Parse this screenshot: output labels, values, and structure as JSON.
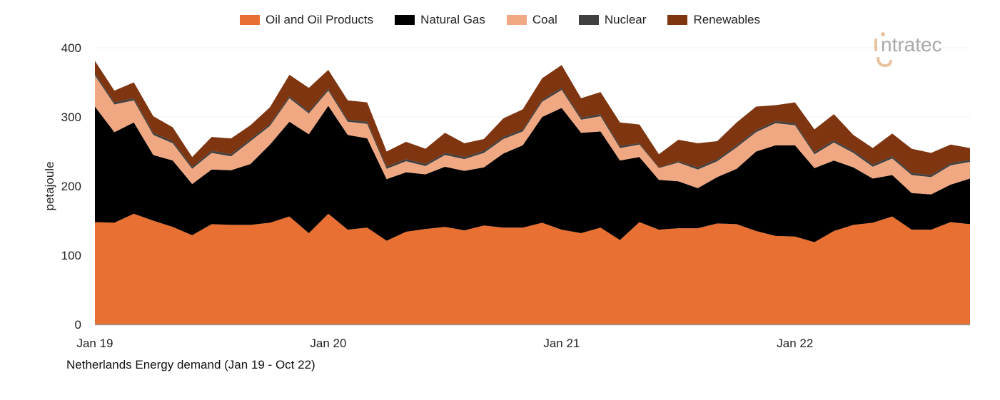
{
  "chart_data": {
    "type": "area",
    "stacked": true,
    "title": "",
    "caption": "Netherlands Energy demand (Jan 19 - Oct 22)",
    "xlabel": "",
    "ylabel": "petajoule",
    "ylim": [
      0,
      400
    ],
    "yticks": [
      0,
      100,
      200,
      300,
      400
    ],
    "xtick_labels": [
      "Jan 19",
      "Jan 20",
      "Jan 21",
      "Jan 22"
    ],
    "grid": true,
    "legend_position": "top-center",
    "categories": [
      "Jan 19",
      "Feb 19",
      "Mar 19",
      "Apr 19",
      "May 19",
      "Jun 19",
      "Jul 19",
      "Aug 19",
      "Sep 19",
      "Oct 19",
      "Nov 19",
      "Dec 19",
      "Jan 20",
      "Feb 20",
      "Mar 20",
      "Apr 20",
      "May 20",
      "Jun 20",
      "Jul 20",
      "Aug 20",
      "Sep 20",
      "Oct 20",
      "Nov 20",
      "Dec 20",
      "Jan 21",
      "Feb 21",
      "Mar 21",
      "Apr 21",
      "May 21",
      "Jun 21",
      "Jul 21",
      "Aug 21",
      "Sep 21",
      "Oct 21",
      "Nov 21",
      "Dec 21",
      "Jan 22",
      "Feb 22",
      "Mar 22",
      "Apr 22",
      "May 22",
      "Jun 22",
      "Jul 22",
      "Aug 22",
      "Sep 22",
      "Oct 22"
    ],
    "series": [
      {
        "name": "Oil and Oil Products",
        "color": "#E87033",
        "values": [
          148,
          147,
          160,
          150,
          141,
          129,
          145,
          144,
          144,
          147,
          156,
          132,
          160,
          137,
          140,
          121,
          134,
          138,
          141,
          136,
          143,
          140,
          140,
          147,
          137,
          132,
          140,
          122,
          148,
          137,
          139,
          139,
          146,
          145,
          135,
          128,
          127,
          119,
          135,
          144,
          147,
          156,
          137,
          137,
          148,
          145
        ]
      },
      {
        "name": "Natural Gas",
        "color": "#000000",
        "values": [
          167,
          131,
          132,
          95,
          96,
          74,
          79,
          79,
          88,
          113,
          137,
          143,
          156,
          137,
          129,
          89,
          86,
          79,
          87,
          86,
          84,
          107,
          119,
          153,
          176,
          145,
          139,
          115,
          94,
          72,
          68,
          58,
          67,
          80,
          115,
          131,
          132,
          107,
          102,
          83,
          64,
          60,
          53,
          51,
          54,
          66
        ]
      },
      {
        "name": "Coal",
        "color": "#F0A882",
        "values": [
          45,
          40,
          32,
          29,
          25,
          22,
          24,
          20,
          33,
          27,
          34,
          30,
          22,
          19,
          21,
          15,
          16,
          12,
          17,
          17,
          21,
          21,
          20,
          22,
          26,
          19,
          22,
          18,
          18,
          17,
          27,
          27,
          23,
          31,
          28,
          32,
          29,
          20,
          26,
          21,
          17,
          24,
          26,
          25,
          28,
          24
        ]
      },
      {
        "name": "Nuclear",
        "color": "#404040",
        "values": [
          3,
          3,
          3,
          3,
          3,
          3,
          3,
          3,
          3,
          3,
          3,
          3,
          3,
          3,
          3,
          3,
          3,
          3,
          3,
          3,
          3,
          3,
          3,
          3,
          3,
          3,
          3,
          3,
          2,
          1,
          2,
          3,
          3,
          3,
          3,
          3,
          3,
          3,
          3,
          3,
          3,
          3,
          3,
          3,
          3,
          3
        ]
      },
      {
        "name": "Renewables",
        "color": "#7E3510",
        "values": [
          18,
          17,
          23,
          24,
          20,
          14,
          20,
          23,
          20,
          24,
          31,
          34,
          27,
          28,
          28,
          22,
          25,
          22,
          29,
          20,
          17,
          27,
          29,
          31,
          33,
          28,
          32,
          34,
          27,
          19,
          31,
          35,
          26,
          33,
          34,
          23,
          30,
          33,
          38,
          23,
          24,
          33,
          35,
          32,
          27,
          17
        ]
      }
    ]
  },
  "logo": {
    "text": "intratec",
    "accent_color": "#E8C3A0",
    "text_color": "#A9A9A9"
  }
}
